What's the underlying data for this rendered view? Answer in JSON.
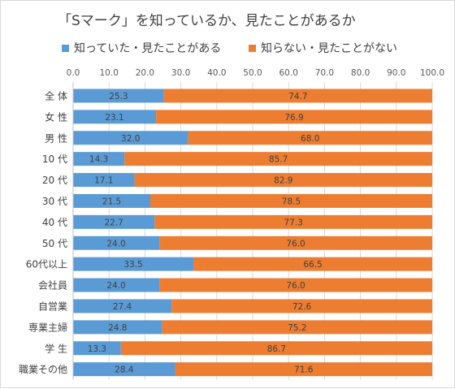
{
  "chart_data": {
    "type": "bar",
    "orientation": "horizontal",
    "stacked": true,
    "title": "「Sマーク」を知っているか、見たことがあるか",
    "categories": [
      "全 体",
      "女 性",
      "男 性",
      "10 代",
      "20 代",
      "30 代",
      "40 代",
      "50 代",
      "60代以上",
      "会社員",
      "自営業",
      "専業主婦",
      "学 生",
      "職業その他"
    ],
    "series": [
      {
        "name": "知っていた・見たことがある",
        "color": "#5b9bd5",
        "values": [
          25.3,
          23.1,
          32.0,
          14.3,
          17.1,
          21.5,
          22.7,
          24.0,
          33.5,
          24.0,
          27.4,
          24.8,
          13.3,
          28.4
        ]
      },
      {
        "name": "知らない・見たことがない",
        "color": "#ed7d31",
        "values": [
          74.7,
          76.9,
          68.0,
          85.7,
          82.9,
          78.5,
          77.3,
          76.0,
          66.5,
          76.0,
          72.6,
          75.2,
          86.7,
          71.6
        ]
      }
    ],
    "xlim": [
      0,
      100
    ],
    "xticks": [
      "0.0",
      "10.0",
      "20.0",
      "30.0",
      "40.0",
      "50.0",
      "60.0",
      "70.0",
      "80.0",
      "90.0",
      "100.0"
    ],
    "grid": true,
    "legend_position": "top",
    "xaxis_position": "top"
  }
}
